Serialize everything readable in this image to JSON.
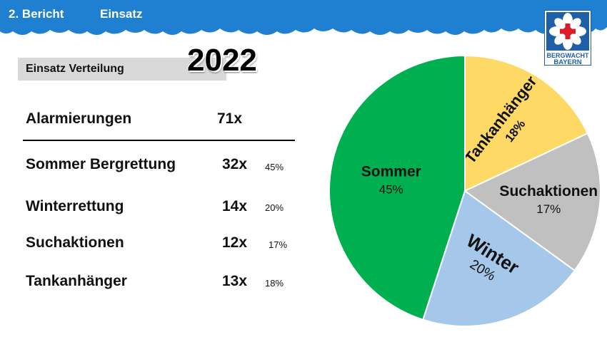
{
  "header": {
    "section": "2.  Bericht",
    "topic": "Einsatz",
    "logo_text_top": "BERGWACHT",
    "logo_text_bottom": "BAYERN"
  },
  "subtitle": "Einsatz Verteilung",
  "year": "2022",
  "table": {
    "total": {
      "label": "Alarmierungen",
      "count": "71x"
    },
    "rows": [
      {
        "label": "Sommer Bergrettung",
        "count": "32x",
        "pct": "45%"
      },
      {
        "label": "Winterrettung",
        "count": "14x",
        "pct": "20%"
      },
      {
        "label": "Suchaktionen",
        "count": "12x",
        "pct": "17%"
      },
      {
        "label": "Tankanhänger",
        "count": "13x",
        "pct": "18%"
      }
    ]
  },
  "colors": {
    "header_blue": "#1f7fd1",
    "sommer": "#00b050",
    "tank": "#ffd966",
    "such": "#c0c0c0",
    "winter": "#a5c8ea"
  },
  "chart_data": {
    "type": "pie",
    "slices": [
      {
        "name": "Tankanhänger",
        "value": 18,
        "label": "18%",
        "color": "#ffd966"
      },
      {
        "name": "Suchaktionen",
        "value": 17,
        "label": "17%",
        "color": "#c0c0c0"
      },
      {
        "name": "Winter",
        "value": 20,
        "label": "20%",
        "color": "#a5c8ea"
      },
      {
        "name": "Sommer",
        "value": 45,
        "label": "45%",
        "color": "#00b050"
      }
    ]
  }
}
